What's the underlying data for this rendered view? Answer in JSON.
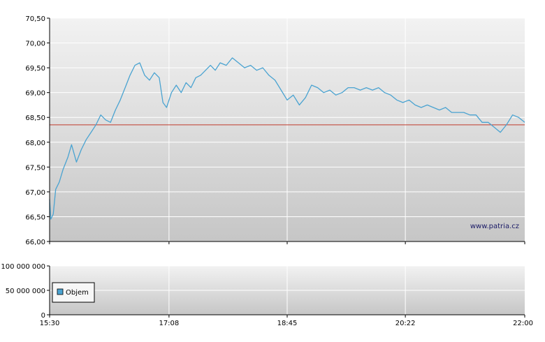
{
  "watermark": "www.patria.cz",
  "legend": {
    "label": "Objem"
  },
  "colors": {
    "price_line": "#4aa3d1",
    "reference_line": "#c0392b",
    "legend_swatch": "#4aa3d1",
    "gradient_top": "#f2f2f2",
    "gradient_bottom": "#c6c6c6",
    "grid": "#ffffff"
  },
  "chart_data": [
    {
      "type": "line",
      "panel": "price",
      "x_ticks": [
        "15:30",
        "17:08",
        "18:45",
        "20:22",
        "22:00"
      ],
      "y_ticks": [
        "66,00",
        "66,50",
        "67,00",
        "67,50",
        "68,00",
        "68,50",
        "69,00",
        "69,50",
        "70,00",
        "70,50"
      ],
      "ylim": [
        66.0,
        70.5
      ],
      "reference_value": 68.35,
      "grid": true,
      "series": [
        {
          "x": [
            "15:30",
            "15:31",
            "15:33",
            "15:35",
            "15:38",
            "15:41",
            "15:45",
            "15:48",
            "15:52",
            "15:56",
            "16:00",
            "16:04",
            "16:08",
            "16:12",
            "16:16",
            "16:20",
            "16:24",
            "16:28",
            "16:32",
            "16:36",
            "16:40",
            "16:44",
            "16:48",
            "16:52",
            "16:56",
            "17:00",
            "17:03",
            "17:06",
            "17:10",
            "17:14",
            "17:18",
            "17:22",
            "17:26",
            "17:30",
            "17:34",
            "17:38",
            "17:42",
            "17:46",
            "17:50",
            "17:55",
            "18:00",
            "18:05",
            "18:10",
            "18:15",
            "18:20",
            "18:25",
            "18:30",
            "18:35",
            "18:40",
            "18:45",
            "18:50",
            "18:55",
            "19:00",
            "19:05",
            "19:10",
            "19:15",
            "19:20",
            "19:25",
            "19:30",
            "19:35",
            "19:40",
            "19:45",
            "19:50",
            "19:55",
            "20:00",
            "20:05",
            "20:10",
            "20:15",
            "20:20",
            "20:25",
            "20:30",
            "20:35",
            "20:40",
            "20:45",
            "20:50",
            "20:55",
            "21:00",
            "21:05",
            "21:10",
            "21:15",
            "21:20",
            "21:25",
            "21:30",
            "21:35",
            "21:40",
            "21:45",
            "21:50",
            "21:55",
            "22:00"
          ],
          "values": [
            66.85,
            66.45,
            66.55,
            67.05,
            67.2,
            67.45,
            67.7,
            67.95,
            67.6,
            67.85,
            68.05,
            68.2,
            68.35,
            68.55,
            68.45,
            68.4,
            68.65,
            68.85,
            69.1,
            69.35,
            69.55,
            69.6,
            69.35,
            69.25,
            69.4,
            69.3,
            68.8,
            68.7,
            69.0,
            69.15,
            69.0,
            69.2,
            69.1,
            69.3,
            69.35,
            69.45,
            69.55,
            69.45,
            69.6,
            69.55,
            69.7,
            69.6,
            69.5,
            69.55,
            69.45,
            69.5,
            69.35,
            69.25,
            69.05,
            68.85,
            68.95,
            68.75,
            68.9,
            69.15,
            69.1,
            69.0,
            69.05,
            68.95,
            69.0,
            69.1,
            69.1,
            69.05,
            69.1,
            69.05,
            69.1,
            69.0,
            68.95,
            68.85,
            68.8,
            68.85,
            68.75,
            68.7,
            68.75,
            68.7,
            68.65,
            68.7,
            68.6,
            68.6,
            68.6,
            68.55,
            68.55,
            68.4,
            68.4,
            68.3,
            68.2,
            68.35,
            68.55,
            68.5,
            68.4
          ]
        }
      ]
    },
    {
      "type": "bar",
      "panel": "volume",
      "x_ticks": [
        "15:30",
        "17:08",
        "18:45",
        "20:22",
        "22:00"
      ],
      "y_ticks": [
        "0",
        "50 000 000",
        "100 000 000"
      ],
      "ylim": [
        0,
        100000000
      ],
      "grid": true,
      "series": [
        {
          "name": "Objem",
          "values": []
        }
      ]
    }
  ]
}
